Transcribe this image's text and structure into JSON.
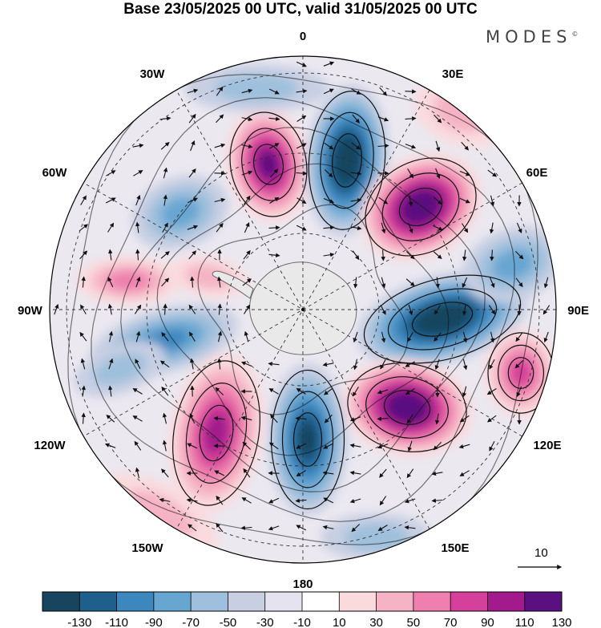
{
  "title": "Base 23/05/2025 00 UTC, valid 31/05/2025 00 UTC",
  "brand": "MODES",
  "brand_mark": "©",
  "longitude_labels": [
    "0",
    "30E",
    "60E",
    "90E",
    "120E",
    "150E",
    "180",
    "150W",
    "120W",
    "90W",
    "60W",
    "30W"
  ],
  "wind_reference": {
    "value": "10",
    "arrow_icon": "reference-arrow-icon"
  },
  "colorbar": {
    "tick_labels": [
      "-130",
      "-110",
      "-90",
      "-70",
      "-50",
      "-30",
      "-10",
      "10",
      "30",
      "50",
      "70",
      "90",
      "110",
      "130"
    ],
    "colors": [
      "#17455f",
      "#1f5f8c",
      "#3d87bf",
      "#68a6d2",
      "#9fc0dc",
      "#c8cfe3",
      "#e5e3ef",
      "#ffffff",
      "#fadadd",
      "#f5b3c5",
      "#ee7fae",
      "#d5409a",
      "#a21a8c",
      "#5a1080"
    ]
  },
  "map": {
    "projection": "south-polar-stereographic",
    "colors": {
      "land_outline": "#6a6a6a",
      "streamline": "#111111",
      "graticule": "#333333",
      "land_fill": "#e9e9e9"
    }
  }
}
